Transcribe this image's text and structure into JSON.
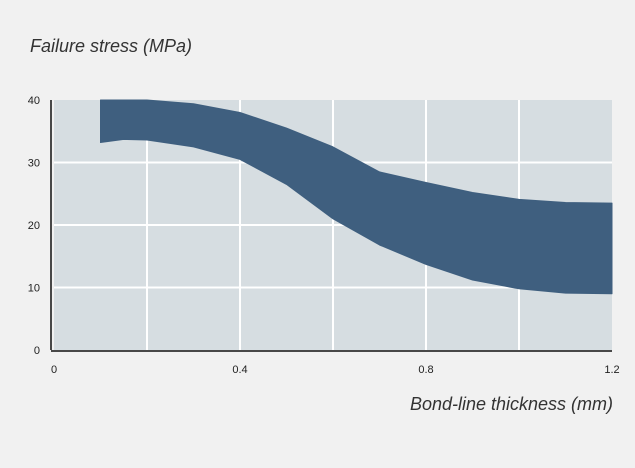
{
  "chart_data": {
    "type": "area",
    "xlabel": "Bond-line thickness (mm)",
    "ylabel": "Failure stress (MPa)",
    "xlim": [
      0,
      1.2
    ],
    "ylim": [
      0,
      40
    ],
    "x_ticks": [
      "0",
      "0.4",
      "0.8",
      "1.2"
    ],
    "x_tick_values": [
      0,
      0.4,
      0.8,
      1.2
    ],
    "y_ticks": [
      "0",
      "10",
      "20",
      "30",
      "40"
    ],
    "y_tick_values": [
      0,
      10,
      20,
      30,
      40
    ],
    "x_gridlines": [
      0.2,
      0.4,
      0.6,
      0.8,
      1.0
    ],
    "y_gridlines": [
      10,
      20,
      30
    ],
    "series": [
      {
        "type": "band",
        "x": [
          0.1,
          0.15,
          0.2,
          0.3,
          0.4,
          0.5,
          0.6,
          0.7,
          0.8,
          0.9,
          1.0,
          1.1,
          1.2
        ],
        "lower": [
          33.2,
          33.7,
          33.6,
          32.5,
          30.5,
          26.5,
          21.0,
          16.8,
          13.7,
          11.2,
          9.8,
          9.1,
          9.0
        ],
        "upper": [
          40,
          40,
          40,
          39.4,
          38.0,
          35.5,
          32.5,
          28.5,
          26.8,
          25.2,
          24.1,
          23.6,
          23.5
        ]
      }
    ],
    "colors": {
      "plot_background": "#d6dde1",
      "band": "#3f5f7f",
      "grid": "#ffffff",
      "axis": "#111111",
      "page_background": "#f1f1f1"
    },
    "grid": true
  }
}
